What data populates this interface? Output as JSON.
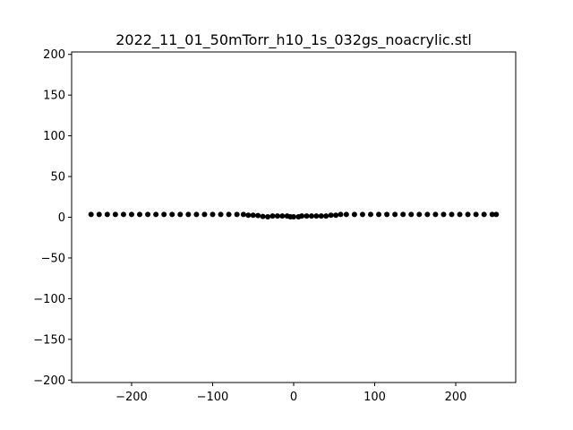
{
  "chart_data": {
    "type": "scatter",
    "title": "2022_11_01_50mTorr_h10_1s_032gs_noacrylic.stl",
    "xlabel": "",
    "ylabel": "",
    "xlim": [
      -274,
      274
    ],
    "ylim": [
      -203,
      203
    ],
    "xticks": [
      -200,
      -100,
      0,
      100,
      200
    ],
    "yticks": [
      200,
      150,
      100,
      50,
      0,
      -50,
      -100,
      -150,
      -200
    ],
    "xtick_labels": [
      "−200",
      "−100",
      "0",
      "100",
      "200"
    ],
    "ytick_labels": [
      "200",
      "150",
      "100",
      "50",
      "0",
      "−50",
      "−100",
      "−150",
      "−200"
    ],
    "grid": false,
    "marker_color": "#000000",
    "series": [
      {
        "points": [
          [
            -250,
            3.5
          ],
          [
            -240,
            3.5
          ],
          [
            -230,
            3.5
          ],
          [
            -220,
            3.5
          ],
          [
            -210,
            3.5
          ],
          [
            -200,
            3.5
          ],
          [
            -190,
            3.5
          ],
          [
            -180,
            3.5
          ],
          [
            -170,
            3.5
          ],
          [
            -160,
            3.5
          ],
          [
            -150,
            3.5
          ],
          [
            -140,
            3.5
          ],
          [
            -130,
            3.5
          ],
          [
            -120,
            3.5
          ],
          [
            -110,
            3.5
          ],
          [
            -100,
            3.5
          ],
          [
            -90,
            3.5
          ],
          [
            -80,
            3.5
          ],
          [
            -70,
            3.5
          ],
          [
            -62,
            3.5
          ],
          [
            -56,
            2.5
          ],
          [
            -50,
            2.5
          ],
          [
            -44,
            2
          ],
          [
            -38,
            1
          ],
          [
            -32,
            0.5
          ],
          [
            -26,
            1.5
          ],
          [
            -20,
            1.5
          ],
          [
            -14,
            1.5
          ],
          [
            -8,
            1.5
          ],
          [
            -4,
            0.5
          ],
          [
            0,
            0.5
          ],
          [
            6,
            0.5
          ],
          [
            10,
            1.5
          ],
          [
            16,
            1.5
          ],
          [
            22,
            1.5
          ],
          [
            28,
            1.5
          ],
          [
            34,
            1.5
          ],
          [
            40,
            1.5
          ],
          [
            46,
            2.5
          ],
          [
            52,
            2.5
          ],
          [
            58,
            3.5
          ],
          [
            65,
            3.5
          ],
          [
            75,
            3.5
          ],
          [
            85,
            3.5
          ],
          [
            95,
            3.5
          ],
          [
            105,
            3.5
          ],
          [
            115,
            3.5
          ],
          [
            125,
            3.5
          ],
          [
            135,
            3.5
          ],
          [
            145,
            3.5
          ],
          [
            155,
            3.5
          ],
          [
            165,
            3.5
          ],
          [
            175,
            3.5
          ],
          [
            185,
            3.5
          ],
          [
            195,
            3.5
          ],
          [
            205,
            3.5
          ],
          [
            215,
            3.5
          ],
          [
            225,
            3.5
          ],
          [
            235,
            3.5
          ],
          [
            245,
            3.5
          ],
          [
            250,
            3.5
          ]
        ]
      }
    ]
  }
}
